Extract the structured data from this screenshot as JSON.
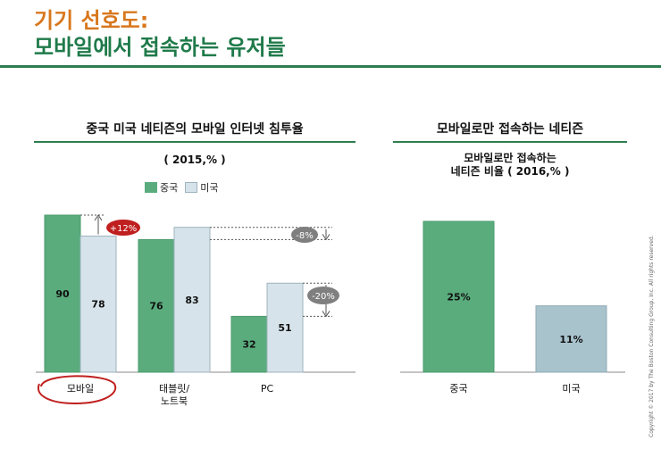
{
  "title": {
    "line1": "기기 선호도:",
    "line2": "모바일에서 접속하는 유저들"
  },
  "left_panel": {
    "heading": "중국 미국 네티즌의 모바일 인터넷 침투율",
    "subtitle": "( 2015,% )"
  },
  "right_panel": {
    "heading": "모바일로만 접속하는 네티즌",
    "subtitle_line1": "모바일로만 접속하는",
    "subtitle_line2": "네티즌 비율 ( 2016,% )"
  },
  "copyright": "Copyright © 2017 by The Boston Consulting Group, Inc. All rights reserved.",
  "colors": {
    "china": "#5aac7d",
    "usa": "#d6e3ea",
    "usa_right": "#a9c3cd",
    "title_orange": "#d8771d",
    "title_green": "#1f7a4a",
    "badge_red": "#c01f1f",
    "badge_gray": "#7f7f7f"
  },
  "chart_data": [
    {
      "type": "bar",
      "title": "중국 미국 네티즌의 모바일 인터넷 침투율",
      "subtitle": "( 2015,% )",
      "categories": [
        "모바일",
        "태블릿/\n노트북",
        "PC"
      ],
      "series": [
        {
          "name": "중국",
          "values": [
            90,
            76,
            32
          ]
        },
        {
          "name": "미국",
          "values": [
            78,
            83,
            51
          ]
        }
      ],
      "ylim": [
        0,
        90
      ],
      "legend": "top-left",
      "annotations": [
        "+12%",
        "-8%",
        "-20%"
      ]
    },
    {
      "type": "bar",
      "title": "모바일로만 접속하는 네티즌",
      "subtitle": "모바일로만 접속하는 네티즌 비율 ( 2016,% )",
      "categories": [
        "중국",
        "미국"
      ],
      "values": [
        25,
        11
      ],
      "value_labels": [
        "25%",
        "11%"
      ],
      "ylim": [
        0,
        25
      ]
    }
  ]
}
